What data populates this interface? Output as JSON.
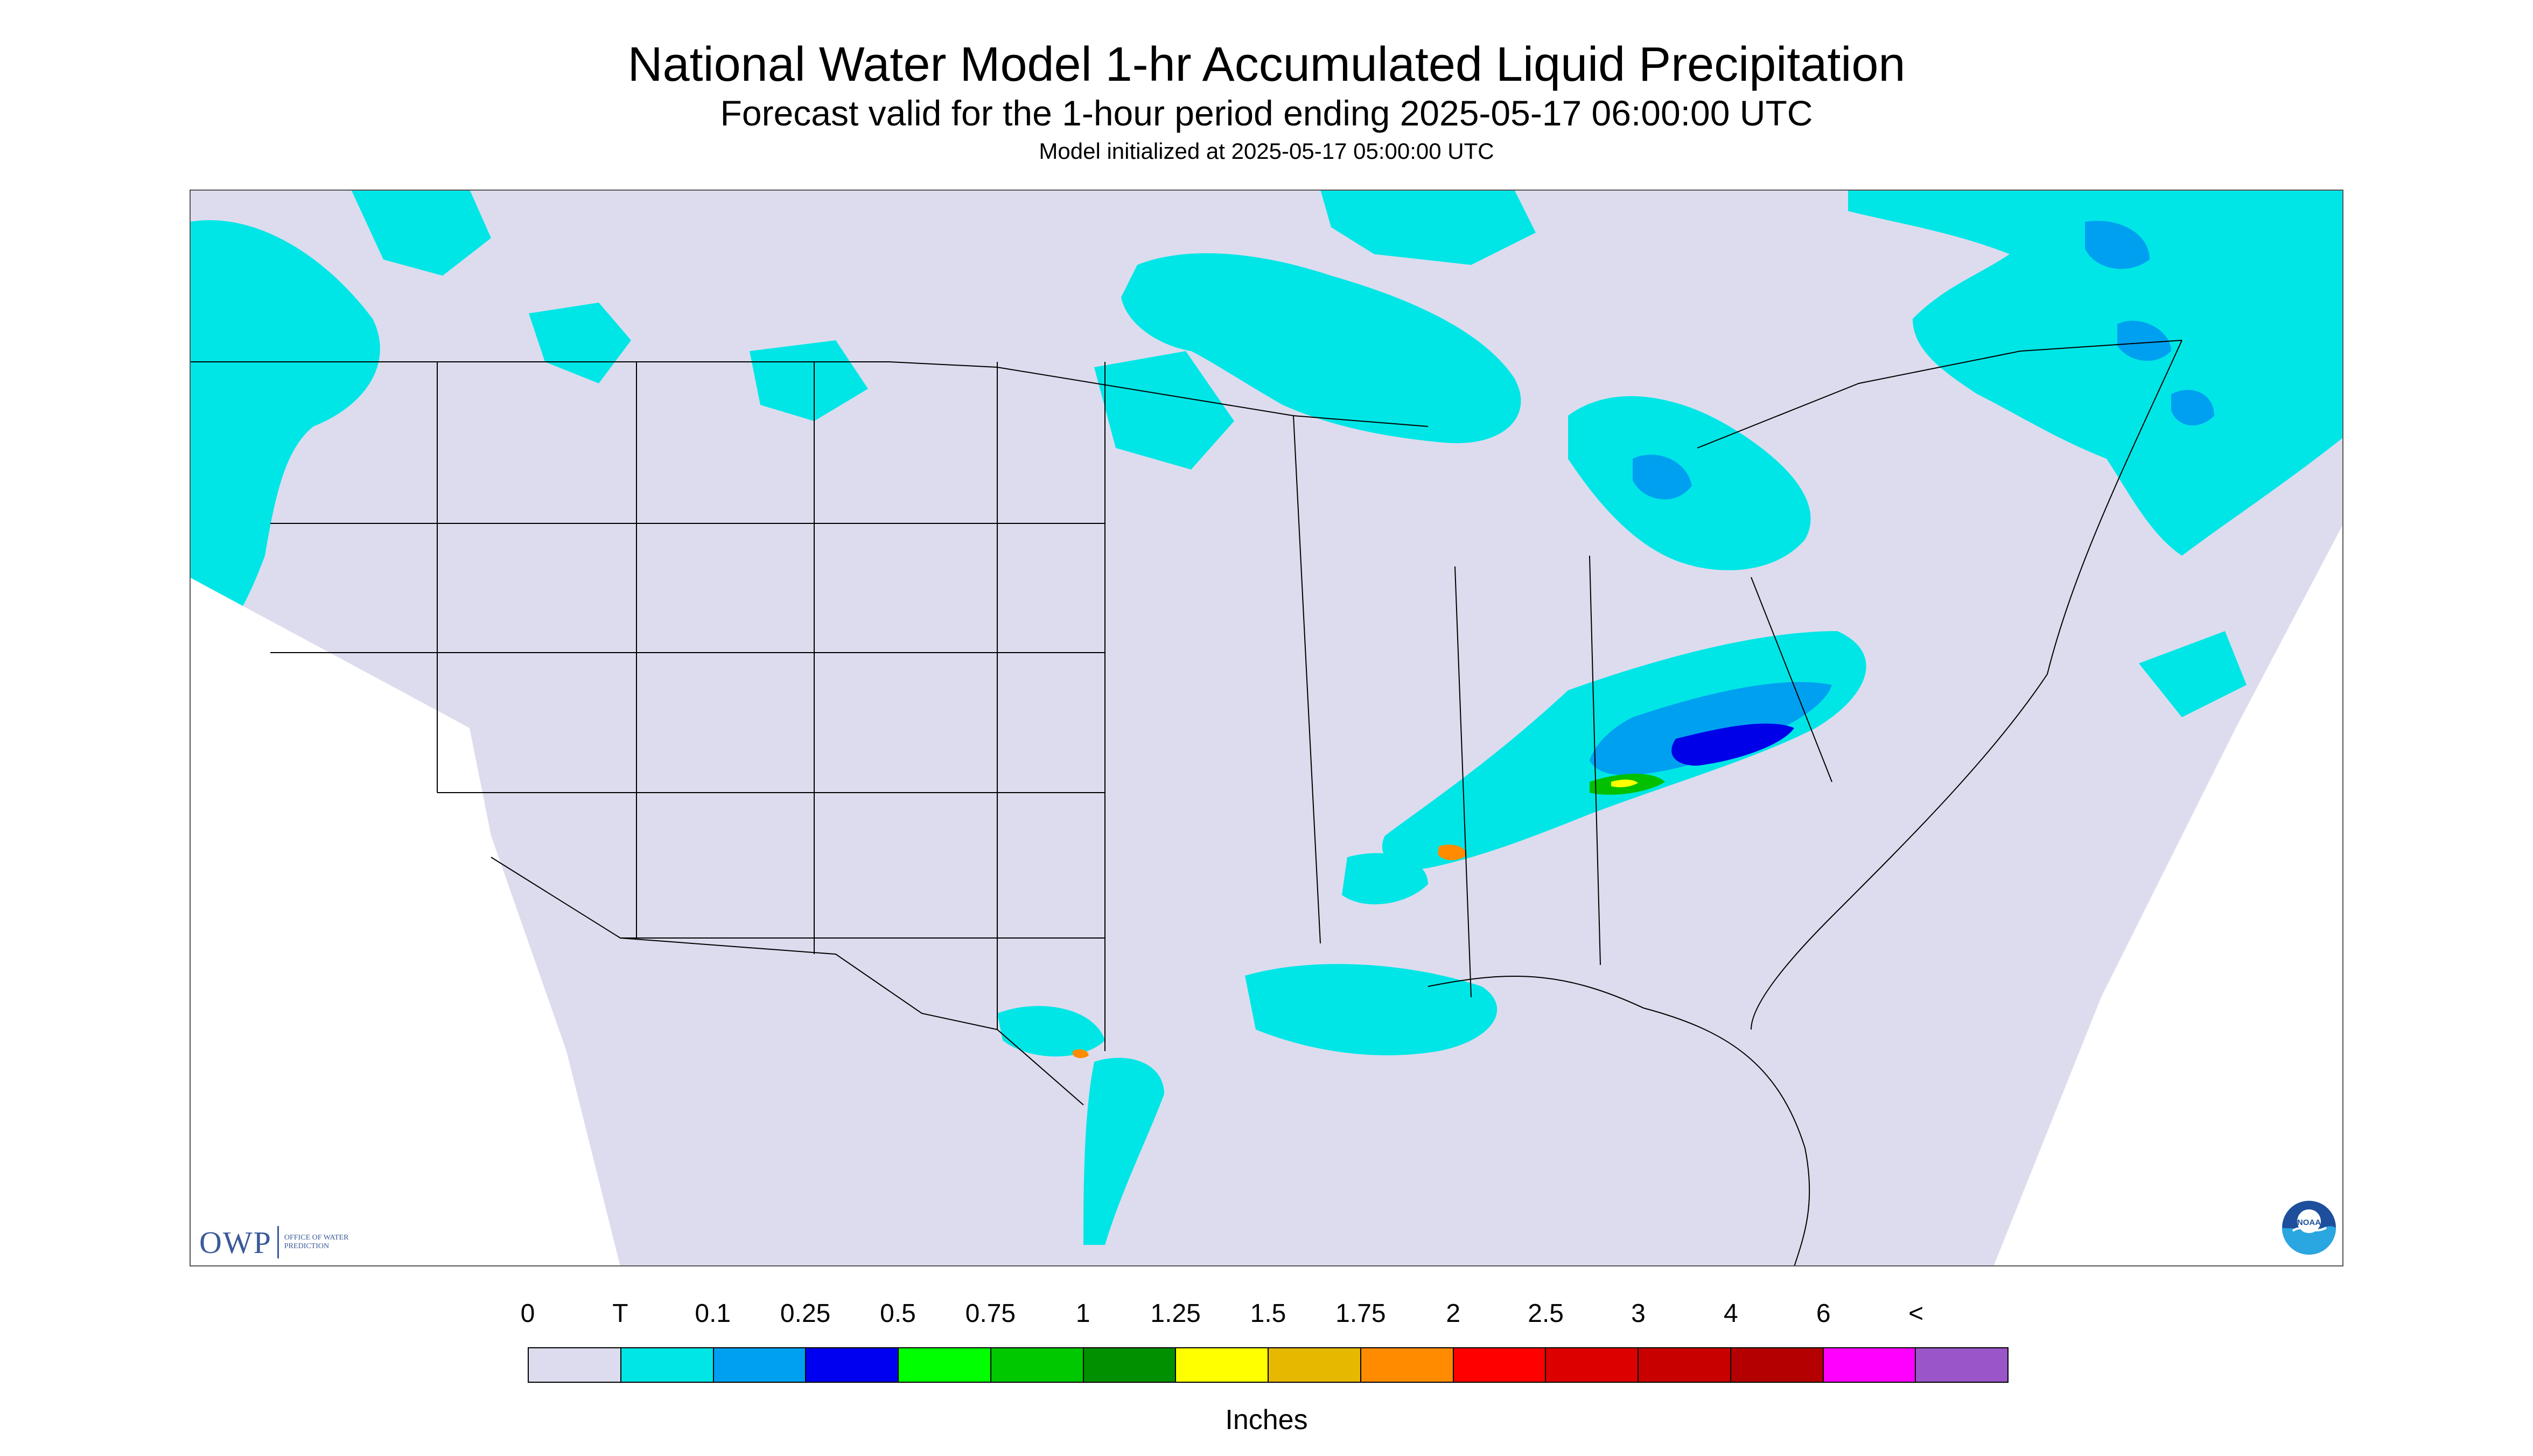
{
  "header": {
    "title": "National Water Model 1-hr Accumulated Liquid Precipitation",
    "subtitle": "Forecast valid for the 1-hour period ending 2025-05-17 06:00:00 UTC",
    "init": "Model initialized at 2025-05-17 05:00:00 UTC"
  },
  "map": {
    "background_color": "#dcdcee",
    "outside_color": "#ffffff",
    "border_color": "#000000",
    "precip_colors": {
      "trace": "#00e6e6",
      "light": "#00a0f0",
      "moderate": "#0000e8",
      "green": "#00c000",
      "yellow": "#ffff00",
      "orange": "#ff8c00",
      "red": "#ff0000"
    }
  },
  "logos": {
    "owp_text": "OWP",
    "owp_subtext": "OFFICE OF WATER PREDICTION",
    "noaa_text": "NOAA"
  },
  "legend": {
    "labels": [
      "0",
      "T",
      "0.1",
      "0.25",
      "0.5",
      "0.75",
      "1",
      "1.25",
      "1.5",
      "1.75",
      "2",
      "2.5",
      "3",
      "4",
      "6",
      "<"
    ],
    "colors": [
      "#dcdcee",
      "#00e6e6",
      "#00a0f0",
      "#0000f0",
      "#00ff00",
      "#00c800",
      "#009000",
      "#ffff00",
      "#e6b800",
      "#ff8c00",
      "#ff0000",
      "#dc0000",
      "#c80000",
      "#b40000",
      "#ff00ff",
      "#9a55c8"
    ],
    "units": "Inches"
  }
}
